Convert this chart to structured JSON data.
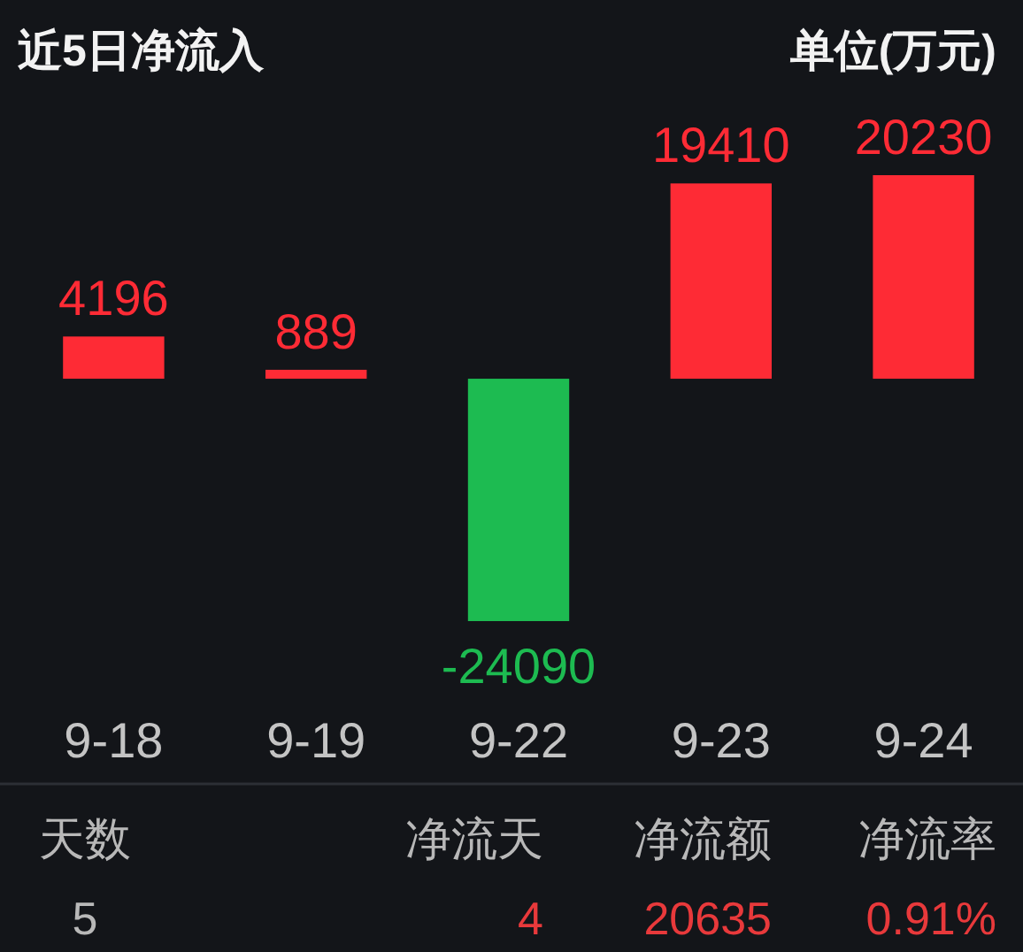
{
  "chart_data": {
    "type": "bar",
    "title": "近5日净流入",
    "categories": [
      "9-18",
      "9-19",
      "9-22",
      "9-23",
      "9-24"
    ],
    "values": [
      4196,
      889,
      -24090,
      19410,
      20230
    ],
    "colors": [
      "#fe2b35",
      "#fe2b35",
      "#1dbb51",
      "#fe2b35",
      "#fe2b35"
    ],
    "data_labels": true,
    "annotations": [
      "单位(万元)",
      "天数",
      "净流天",
      "净流额",
      "净流率",
      "5",
      "4",
      "20635",
      "0.91%"
    ]
  }
}
